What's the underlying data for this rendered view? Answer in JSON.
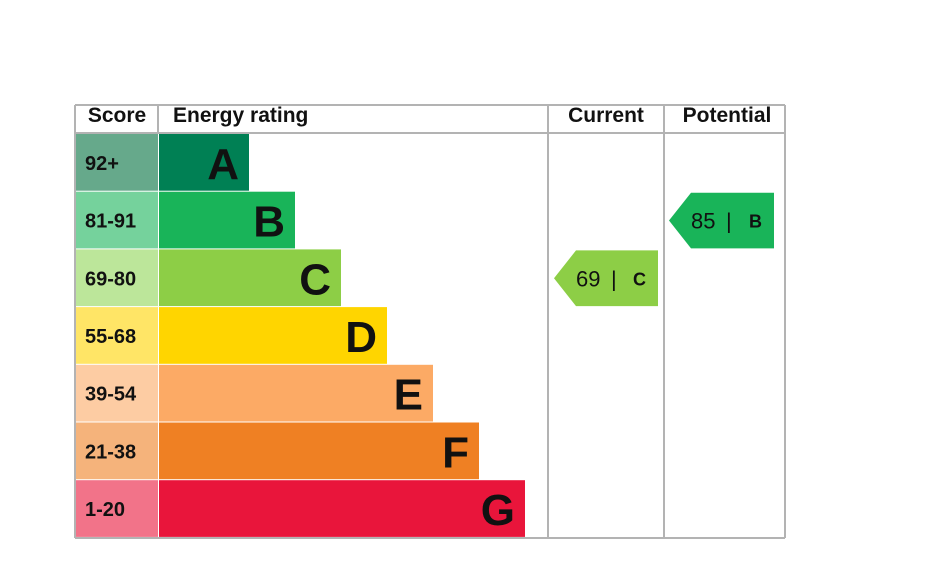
{
  "chart_data": {
    "type": "bar",
    "headers": {
      "score": "Score",
      "rating": "Energy rating",
      "current": "Current",
      "potential": "Potential"
    },
    "bands": [
      {
        "letter": "A",
        "score": "92+",
        "color": "#008054",
        "score_color": "#66a98b"
      },
      {
        "letter": "B",
        "score": "81-91",
        "color": "#19b459",
        "score_color": "#75d29c"
      },
      {
        "letter": "C",
        "score": "69-80",
        "color": "#8dce46",
        "score_color": "#bce69a"
      },
      {
        "letter": "D",
        "score": "55-68",
        "color": "#ffd500",
        "score_color": "#ffe566"
      },
      {
        "letter": "E",
        "score": "39-54",
        "color": "#fcaa65",
        "score_color": "#fdcca3"
      },
      {
        "letter": "F",
        "score": "21-38",
        "color": "#ef8023",
        "score_color": "#f5b37b"
      },
      {
        "letter": "G",
        "score": "1-20",
        "color": "#e9153b",
        "score_color": "#f27389"
      }
    ],
    "current": {
      "value": "69",
      "letter": "C",
      "color": "#8dce46",
      "separator": "|"
    },
    "potential": {
      "value": "85",
      "letter": "B",
      "color": "#19b459",
      "separator": "|"
    }
  }
}
